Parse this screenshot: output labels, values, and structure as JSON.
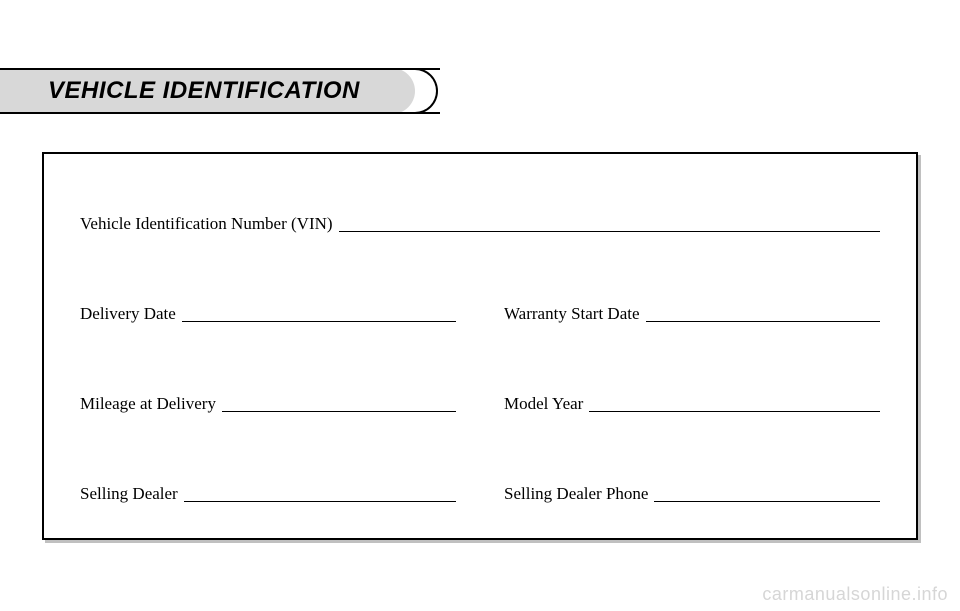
{
  "header": {
    "title": "VEHICLE IDENTIFICATION",
    "tab_bg_color": "#d8d8d8",
    "border_color": "#000000"
  },
  "form": {
    "vin_label": "Vehicle Identification Number (VIN)",
    "delivery_date_label": "Delivery Date",
    "warranty_start_label": "Warranty Start Date",
    "mileage_label": "Mileage at Delivery",
    "model_year_label": "Model Year",
    "selling_dealer_label": "Selling Dealer",
    "selling_dealer_phone_label": "Selling Dealer Phone",
    "box_shadow_color": "#c0c0c0",
    "border_color": "#000000",
    "label_fontsize": 17
  },
  "watermark": {
    "text": "carmanualsonline.info",
    "color": "#d6d6d6"
  }
}
